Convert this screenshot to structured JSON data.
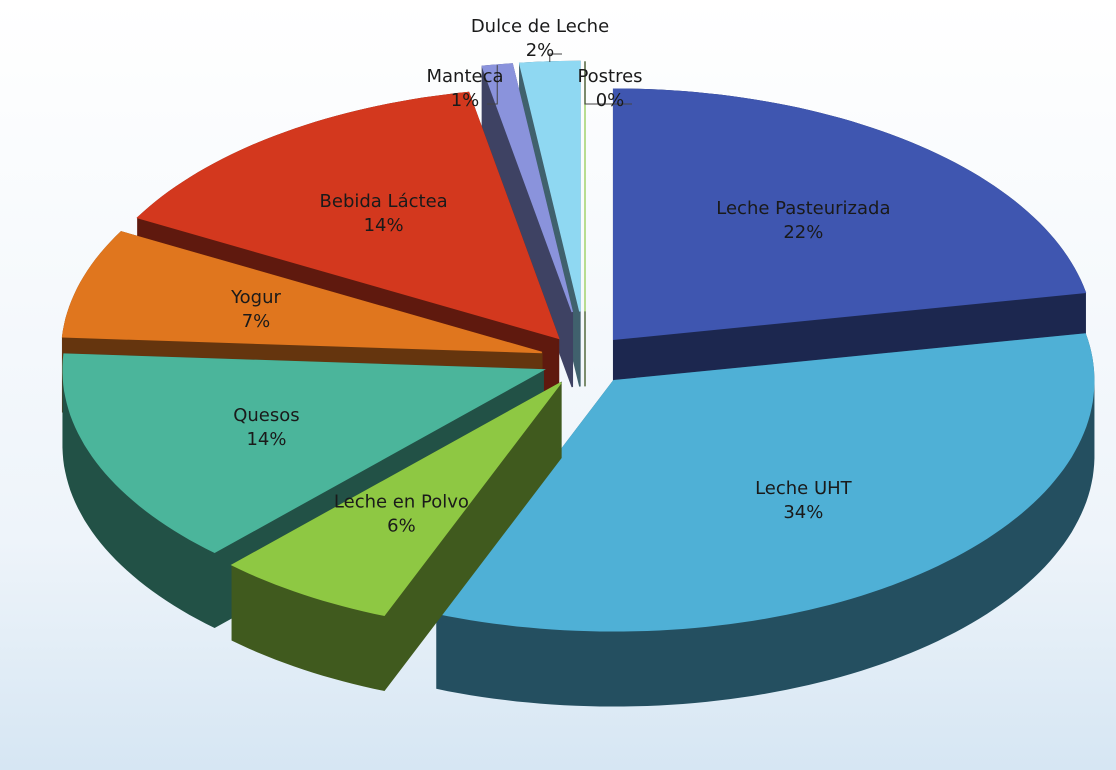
{
  "chart_data": {
    "type": "pie",
    "categories": [
      "Leche Pasteurizada",
      "Leche UHT",
      "Leche en Polvo",
      "Quesos",
      "Yogur",
      "Bebida Láctea",
      "Manteca",
      "Dulce de Leche",
      "Postres"
    ],
    "values": [
      22,
      34,
      6,
      14,
      7,
      14,
      1,
      2,
      0
    ],
    "value_labels": [
      "22%",
      "34%",
      "6%",
      "14%",
      "7%",
      "14%",
      "1%",
      "2%",
      "0%"
    ],
    "colors": [
      "#3f56b0",
      "#4fb0d6",
      "#8ec843",
      "#4bb59b",
      "#e0761e",
      "#d3381e",
      "#8a93dc",
      "#8fd8f2",
      "#bdeb8c"
    ]
  }
}
